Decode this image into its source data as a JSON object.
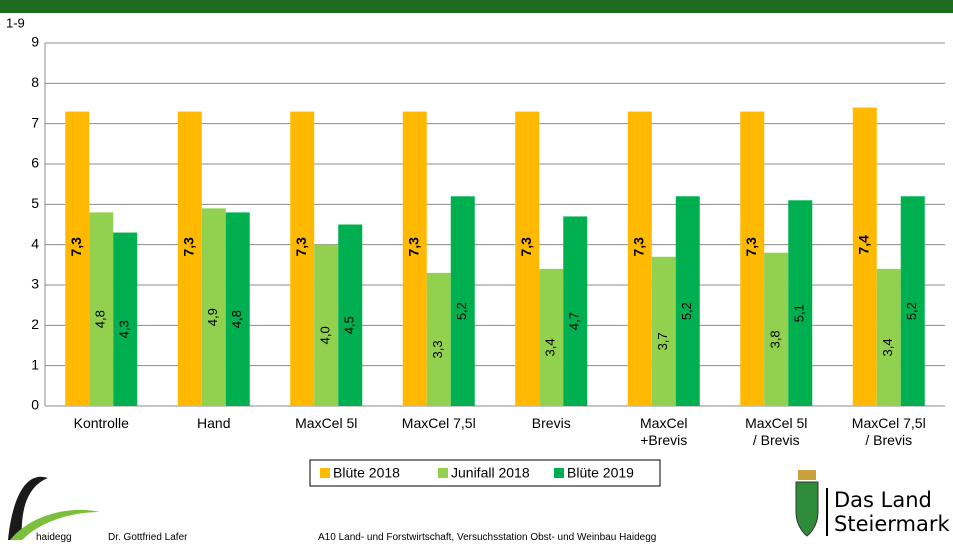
{
  "chart_data": {
    "type": "bar",
    "y_label": "1-9",
    "categories": [
      "Kontrolle",
      "Hand",
      "MaxCel 5l",
      "MaxCel 7,5l",
      "Brevis",
      "MaxCel\n+Brevis",
      "MaxCel 5l\n/ Brevis",
      "MaxCel 7,5l\n/ Brevis"
    ],
    "series": [
      {
        "name": "Blüte 2018",
        "color": "#ffb900",
        "values": [
          7.3,
          7.3,
          7.3,
          7.3,
          7.3,
          7.3,
          7.3,
          7.4
        ],
        "value_labels": [
          "7,3",
          "7,3",
          "7,3",
          "7,3",
          "7,3",
          "7,3",
          "7,3",
          "7,4"
        ]
      },
      {
        "name": "Junifall 2018",
        "color": "#92d050",
        "values": [
          4.8,
          4.9,
          4.0,
          3.3,
          3.4,
          3.7,
          3.8,
          3.4
        ],
        "value_labels": [
          "4,8",
          "4,9",
          "4,0",
          "3,3",
          "3,4",
          "3,7",
          "3,8",
          "3,4"
        ]
      },
      {
        "name": "Blüte 2019",
        "color": "#00b050",
        "values": [
          4.3,
          4.8,
          4.5,
          5.2,
          4.7,
          5.2,
          5.1,
          5.2
        ],
        "value_labels": [
          "4,3",
          "4,8",
          "4,5",
          "5,2",
          "4,7",
          "5,2",
          "5,1",
          "5,2"
        ]
      }
    ],
    "ylim": [
      0,
      9
    ],
    "yticks": [
      0,
      1,
      2,
      3,
      4,
      5,
      6,
      7,
      8,
      9
    ],
    "grid": true,
    "legend": "bottom"
  },
  "footer": {
    "logo": "haidegg",
    "author": "Dr. Gottfried Lafer",
    "institution": "A10 Land- und Forstwirtschaft, Versuchsstation Obst- und Weinbau Haidegg",
    "brand_line1": "Das Land",
    "brand_line2": "Steiermark"
  }
}
